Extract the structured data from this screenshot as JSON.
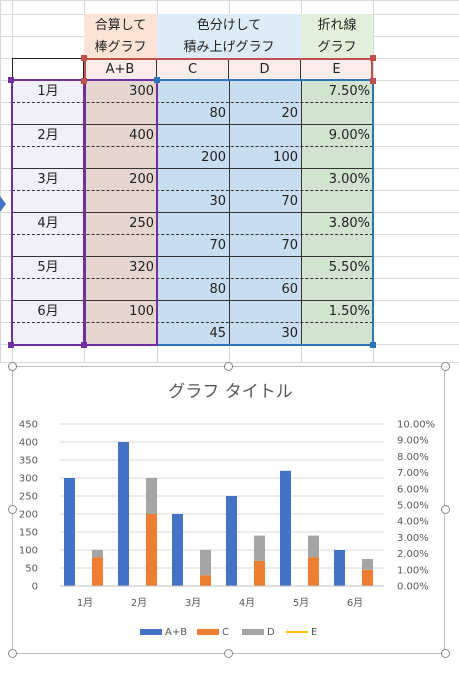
{
  "headers": {
    "group1": [
      "合算して",
      "棒グラフ"
    ],
    "group2": [
      "色分けして",
      "積み上げグラフ"
    ],
    "group3": [
      "折れ線",
      "グラフ"
    ],
    "cols": [
      "A+B",
      "C",
      "D",
      "E"
    ]
  },
  "rows": [
    {
      "month": "1月",
      "ab": "300",
      "e": "7.50%",
      "c": "80",
      "d": "20"
    },
    {
      "month": "2月",
      "ab": "400",
      "e": "9.00%",
      "c": "200",
      "d": "100"
    },
    {
      "month": "3月",
      "ab": "200",
      "e": "3.00%",
      "c": "30",
      "d": "70"
    },
    {
      "month": "4月",
      "ab": "250",
      "e": "3.80%",
      "c": "70",
      "d": "70"
    },
    {
      "month": "5月",
      "ab": "320",
      "e": "5.50%",
      "c": "80",
      "d": "60"
    },
    {
      "month": "6月",
      "ab": "100",
      "e": "1.50%",
      "c": "45",
      "d": "30"
    }
  ],
  "colors": {
    "ab_fill": "#e6d6d0",
    "cd_fill": "#c9ddf0",
    "e_fill": "#d2e3d0",
    "month_fill": "#f1eff8",
    "hdr1_fill": "#fbe4d5",
    "hdr2_fill": "#ddebf7",
    "hdr3_fill": "#e2efda",
    "sel_red": "#c0504d",
    "sel_purple": "#7030a0",
    "sel_blue": "#2e75b6",
    "series_ab": "#4472c4",
    "series_c": "#ed7d31",
    "series_d": "#a5a5a5",
    "series_e": "#ffc000"
  },
  "chart_data": {
    "type": "bar",
    "title": "グラフ タイトル",
    "categories": [
      "1月",
      "2月",
      "3月",
      "4月",
      "5月",
      "6月"
    ],
    "series": [
      {
        "name": "A+B",
        "values": [
          300,
          400,
          200,
          250,
          320,
          100
        ],
        "stack": "ab"
      },
      {
        "name": "C",
        "values": [
          80,
          200,
          30,
          70,
          80,
          45
        ],
        "stack": "cd"
      },
      {
        "name": "D",
        "values": [
          20,
          100,
          70,
          70,
          60,
          30
        ],
        "stack": "cd"
      },
      {
        "name": "E",
        "values": [
          0.075,
          0.09,
          0.03,
          0.038,
          0.055,
          0.015
        ],
        "axis": "secondary",
        "type": "line"
      }
    ],
    "ylim": [
      0,
      450
    ],
    "yticks": [
      "0",
      "50",
      "100",
      "150",
      "200",
      "250",
      "300",
      "350",
      "400",
      "450"
    ],
    "y2lim": [
      0,
      0.1
    ],
    "y2ticks": [
      "0.00%",
      "1.00%",
      "2.00%",
      "3.00%",
      "4.00%",
      "5.00%",
      "6.00%",
      "7.00%",
      "8.00%",
      "9.00%",
      "10.00%"
    ],
    "grid": true,
    "legend": "bottom",
    "legend_items": [
      "A+B",
      "C",
      "D",
      "E"
    ]
  }
}
